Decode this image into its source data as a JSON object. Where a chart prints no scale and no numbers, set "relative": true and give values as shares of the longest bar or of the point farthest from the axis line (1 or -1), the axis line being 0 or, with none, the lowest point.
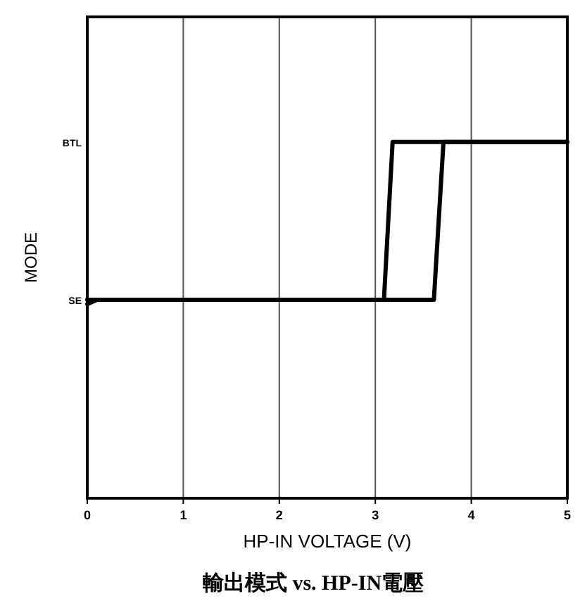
{
  "chart_data": {
    "type": "line",
    "xlabel": "HP-IN VOLTAGE (V)",
    "ylabel": "MODE",
    "annotations": [
      {
        "text": "SE",
        "x": 0,
        "y": 0.557
      },
      "BTL",
      "輸出模式 vs. HP-IN電壓"
    ],
    "xlim": [
      0,
      5
    ],
    "xticks": [
      0,
      1,
      2,
      3,
      4,
      5
    ],
    "relative": true,
    "grid": "x",
    "marker": "none",
    "line_style": "solid",
    "series": [
      {
        "color": "#000000",
        "x": [
          0,
          0.1,
          3.09,
          3.18,
          5
        ],
        "values": [
          0.545,
          0.557,
          0.557,
          1,
          1
        ]
      },
      {
        "color": "#000000",
        "x": [
          0,
          3.61,
          3.71,
          5
        ],
        "values": [
          0.557,
          0.557,
          1,
          1
        ]
      }
    ]
  }
}
